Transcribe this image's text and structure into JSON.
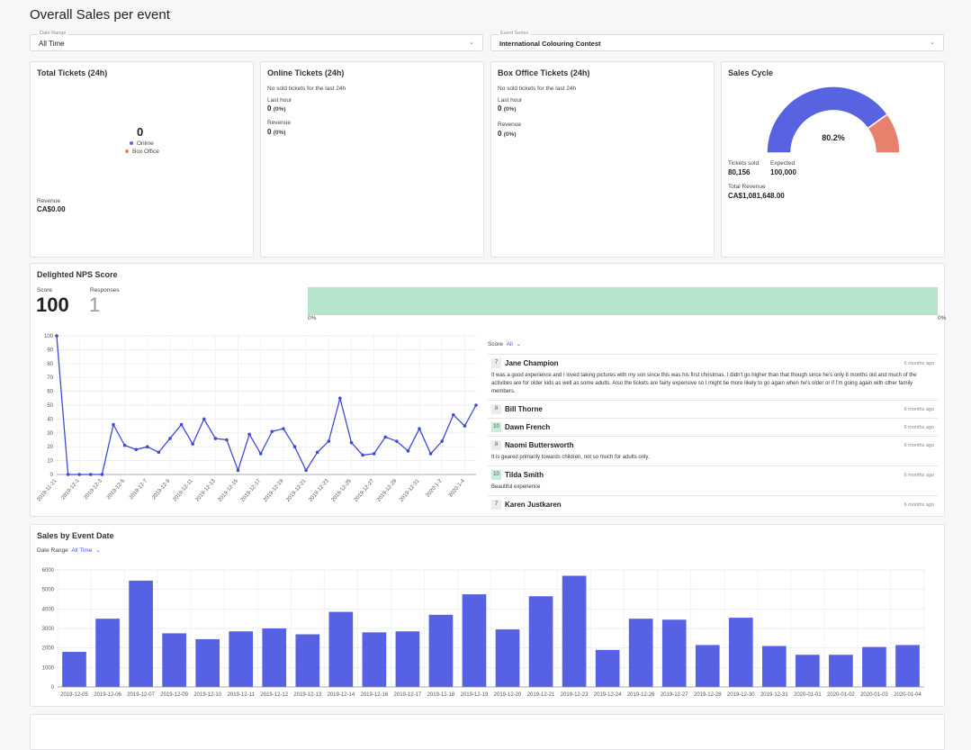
{
  "header": {
    "title": "Overall Sales per event"
  },
  "filters": [
    {
      "label": "Date Range",
      "value": "All Time"
    },
    {
      "label": "Event Series",
      "value": "International Colouring Contest"
    }
  ],
  "total_tickets": {
    "title": "Total Tickets (24h)",
    "value": 0,
    "legend": [
      "Online",
      "Box Office"
    ],
    "revenue_label": "Revenue",
    "revenue": "CA$0.00"
  },
  "online_tickets": {
    "title": "Online Tickets (24h)",
    "note": "No sold tickets for the last 24h",
    "last_hour_label": "Last hour",
    "last_hour": 0,
    "last_hour_pct": "(0%)",
    "revenue_label": "Revenue",
    "revenue": 0,
    "revenue_pct": "(0%)"
  },
  "box_office_tickets": {
    "title": "Box Office Tickets (24h)",
    "note": "No sold tickets for the last 24h",
    "last_hour_label": "Last hour",
    "last_hour": 0,
    "last_hour_pct": "(0%)",
    "revenue_label": "Revenue",
    "revenue": 0,
    "revenue_pct": "(0%)"
  },
  "sales_cycle": {
    "title": "Sales Cycle",
    "sold_label": "Tickets sold",
    "sold": "80,156",
    "expected_label": "Expected",
    "expected": "100,000",
    "revenue_label": "Total Revenue",
    "revenue": "CA$1,081,648.00"
  },
  "nps": {
    "title": "Delighted NPS Score",
    "score_label": "Score",
    "score": 100,
    "responses_label": "Responses",
    "responses": 1,
    "bar_start": "0%",
    "bar_end": "0%",
    "filter_label": "Score",
    "filter_value": "All"
  },
  "reviews": [
    {
      "score": 7,
      "name": "Jane Champion",
      "time": "6 months ago",
      "text": "It was a good experience and I loved taking pictures with my son since this was his first christmas. I didn't go higher than that though since he's only 8 months old and much of the activities are for older kids as well as some adults. Also the tickets are fairly expensive so I might be more likely to go again when he's older or if I'm going again with other family members."
    },
    {
      "score": 8,
      "name": "Bill Thorne",
      "time": "6 months ago"
    },
    {
      "score": 10,
      "name": "Dawn French",
      "time": "6 months ago"
    },
    {
      "score": 8,
      "name": "Naomi Buttersworth",
      "time": "6 months ago",
      "text": "It is geared primarily towards children, not so much for adults only."
    },
    {
      "score": 10,
      "name": "Tilda Smith",
      "time": "6 months ago",
      "text": "Beautiful experience"
    },
    {
      "score": 7,
      "name": "Karen Justkaren",
      "time": "6 months ago"
    }
  ],
  "sales_by_date": {
    "title": "Sales by Event Date",
    "filter_label": "Date Range",
    "filter_value": "All Time"
  },
  "chart_data": [
    {
      "type": "gauge",
      "values": [
        80.2
      ],
      "value_labels": [
        "80.2%"
      ],
      "ylim": [
        0,
        100
      ],
      "colors": [
        "#5763e1",
        "#e8806e"
      ]
    },
    {
      "type": "line",
      "color": "#3f4bd6",
      "grid": true,
      "categories": [
        "2019-11-21",
        null,
        "2019-12-1",
        null,
        "2019-12-3",
        null,
        "2019-12-5",
        null,
        "2019-12-7",
        null,
        "2019-12-9",
        null,
        "2019-12-11",
        null,
        "2019-12-13",
        null,
        "2019-12-15",
        null,
        "2019-12-17",
        null,
        "2019-12-19",
        null,
        "2019-12-21",
        null,
        "2019-12-23",
        null,
        "2019-12-25",
        null,
        "2019-12-27",
        null,
        "2019-12-29",
        null,
        "2019-12-31",
        null,
        "2020-1-2",
        null,
        "2020-1-4",
        null
      ],
      "values": [
        100,
        0,
        0,
        0,
        0,
        36,
        21,
        18,
        20,
        16,
        26,
        36,
        22,
        40,
        26,
        25,
        3,
        29,
        15,
        31,
        33,
        20,
        3,
        16,
        24,
        55,
        23,
        14,
        15,
        27,
        24,
        17,
        33,
        15,
        24,
        43,
        35,
        50
      ],
      "ylim": [
        0,
        100
      ],
      "yticks": [
        0,
        10,
        20,
        30,
        40,
        50,
        60,
        70,
        80,
        90,
        100
      ]
    },
    {
      "type": "bar",
      "color": "#5661e3",
      "grid": true,
      "categories": [
        "2019-12-05",
        "2019-12-06",
        "2019-12-07",
        "2019-12-09",
        "2019-12-10",
        "2019-12-11",
        "2019-12-12",
        "2019-12-13",
        "2019-12-14",
        "2019-12-16",
        "2019-12-17",
        "2019-12-18",
        "2019-12-19",
        "2019-12-20",
        "2019-12-21",
        "2019-12-23",
        "2019-12-24",
        "2019-12-26",
        "2019-12-27",
        "2019-12-28",
        "2019-12-30",
        "2019-12-31",
        "2020-01-01",
        "2020-01-02",
        "2020-01-03",
        "2020-01-04"
      ],
      "values": [
        1800,
        3500,
        5450,
        2750,
        2450,
        2850,
        3000,
        2700,
        3850,
        2800,
        2850,
        3700,
        4750,
        2950,
        4650,
        5700,
        1900,
        3500,
        3450,
        2150,
        3550,
        2100,
        1650,
        1650,
        2050,
        2150
      ],
      "ylim": [
        0,
        6000
      ],
      "yticks": [
        0,
        1000,
        2000,
        3000,
        4000,
        5000,
        6000
      ]
    }
  ]
}
